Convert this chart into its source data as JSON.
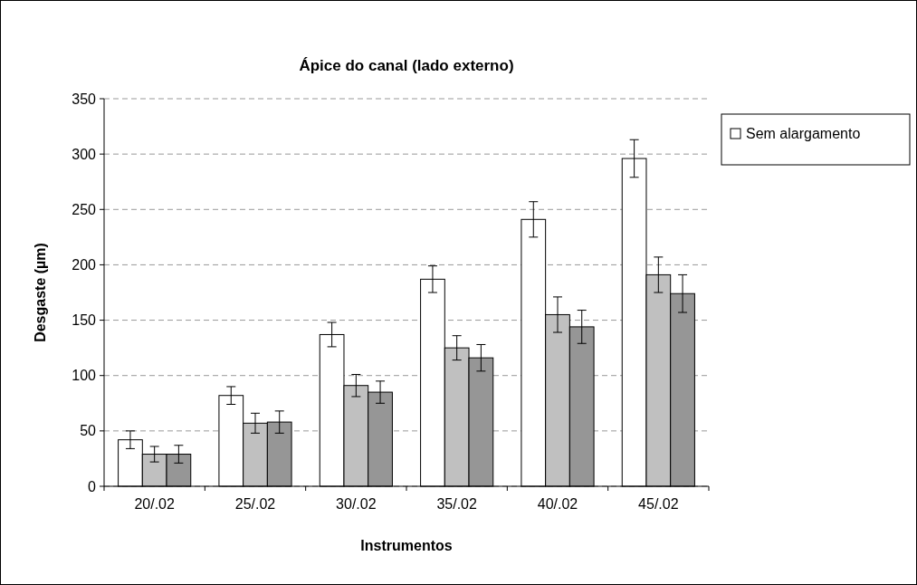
{
  "chart_data": {
    "type": "bar",
    "title": "Ápice do canal (lado externo)",
    "xlabel": "Instrumentos",
    "ylabel": "Desgaste (µm)",
    "categories": [
      "20/.02",
      "25/.02",
      "30/.02",
      "35/.02",
      "40/.02",
      "45/.02"
    ],
    "series": [
      {
        "name": "Sem alargamento",
        "color": "#ffffff",
        "values": [
          42,
          82,
          137,
          187,
          241,
          296
        ],
        "errors": [
          8,
          8,
          11,
          12,
          16,
          17
        ]
      },
      {
        "color": "#c0c0c0",
        "values": [
          29,
          57,
          91,
          125,
          155,
          191
        ],
        "errors": [
          7,
          9,
          10,
          11,
          16,
          16
        ]
      },
      {
        "color": "#969696",
        "values": [
          29,
          58,
          85,
          116,
          144,
          174
        ],
        "errors": [
          8,
          10,
          10,
          12,
          15,
          17
        ]
      }
    ],
    "ylim": [
      0,
      350
    ],
    "yticks": [
      0,
      50,
      100,
      150,
      200,
      250,
      300,
      350
    ],
    "grid": "y",
    "legend": "right"
  }
}
